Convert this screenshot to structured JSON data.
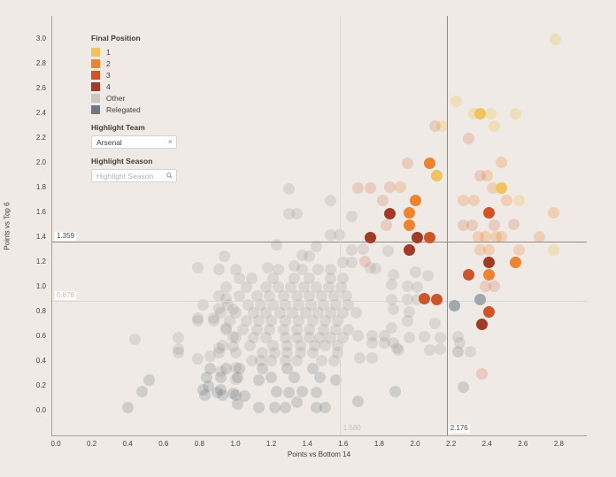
{
  "controls": {
    "highlight_team": {
      "label": "Highlight Team",
      "value": "Arsenal",
      "clear_icon": "×"
    },
    "highlight_season": {
      "label": "Highlight Season",
      "placeholder": "Highlight Season"
    }
  },
  "chart_data": {
    "type": "scatter",
    "title": "",
    "xlabel": "Points vs Bottom 14",
    "ylabel": "Points vs Top 6",
    "xlim": [
      0.0,
      2.8
    ],
    "ylim": [
      0.0,
      3.0
    ],
    "grid": false,
    "x_ticks": [
      "0.0",
      "0.2",
      "0.4",
      "0.6",
      "0.8",
      "1.0",
      "1.2",
      "1.4",
      "1.6",
      "1.8",
      "2.0",
      "2.2",
      "2.4",
      "2.6",
      "2.8"
    ],
    "y_ticks": [
      "0.0",
      "0.2",
      "0.4",
      "0.6",
      "0.8",
      "1.0",
      "1.2",
      "1.4",
      "1.6",
      "1.8",
      "2.0",
      "2.2",
      "2.4",
      "2.6",
      "2.8",
      "3.0"
    ],
    "legend": {
      "title": "Final Position",
      "position": "top-left",
      "entries": [
        {
          "label": "1",
          "color": "#f0c35f"
        },
        {
          "label": "2",
          "color": "#ee8330"
        },
        {
          "label": "3",
          "color": "#cf5429"
        },
        {
          "label": "4",
          "color": "#a03b28"
        },
        {
          "label": "Other",
          "color": "#c9c6c3"
        },
        {
          "label": "Relegated",
          "color": "#6e7883"
        }
      ]
    },
    "ref_lines": {
      "horizontal": [
        {
          "value": 1.359,
          "label": "1.359",
          "strong": true
        },
        {
          "value": 0.878,
          "label": "0.878",
          "strong": false
        }
      ],
      "vertical": [
        {
          "value": 1.58,
          "label": "1.580",
          "strong": false
        },
        {
          "value": 2.176,
          "label": "2.176",
          "strong": true
        }
      ]
    },
    "highlighted_team_points": [
      [
        2.36,
        2.39,
        "1"
      ],
      [
        2.12,
        1.89,
        "1"
      ],
      [
        2.48,
        1.79,
        "1"
      ],
      [
        2.08,
        1.99,
        "2"
      ],
      [
        2.0,
        1.69,
        "2"
      ],
      [
        1.97,
        1.59,
        "2"
      ],
      [
        1.97,
        1.49,
        "2"
      ],
      [
        2.56,
        1.19,
        "2"
      ],
      [
        2.41,
        1.09,
        "2"
      ],
      [
        2.41,
        1.59,
        "3"
      ],
      [
        2.08,
        1.39,
        "3"
      ],
      [
        2.3,
        1.09,
        "3"
      ],
      [
        2.05,
        0.9,
        "3"
      ],
      [
        2.12,
        0.89,
        "3"
      ],
      [
        2.41,
        0.79,
        "3"
      ],
      [
        1.86,
        1.58,
        "4"
      ],
      [
        1.75,
        1.39,
        "4"
      ],
      [
        2.01,
        1.39,
        "4"
      ],
      [
        1.97,
        1.29,
        "4"
      ],
      [
        2.41,
        1.19,
        "4"
      ],
      [
        2.37,
        0.69,
        "4"
      ],
      [
        2.36,
        0.89,
        "G"
      ],
      [
        2.22,
        0.84,
        "G"
      ]
    ],
    "background_points": [
      [
        2.78,
        2.99,
        "1"
      ],
      [
        2.23,
        2.49,
        "1"
      ],
      [
        2.33,
        2.39,
        "1"
      ],
      [
        2.42,
        2.39,
        "1"
      ],
      [
        2.56,
        2.39,
        "1"
      ],
      [
        2.44,
        2.29,
        "1"
      ],
      [
        2.15,
        2.29,
        "1"
      ],
      [
        2.58,
        1.69,
        "1"
      ],
      [
        2.77,
        1.29,
        "1"
      ],
      [
        2.48,
        2.0,
        "2"
      ],
      [
        2.4,
        1.89,
        "2"
      ],
      [
        2.43,
        1.79,
        "2"
      ],
      [
        1.92,
        1.8,
        "2"
      ],
      [
        2.27,
        1.69,
        "2"
      ],
      [
        2.33,
        1.69,
        "2"
      ],
      [
        2.51,
        1.69,
        "2"
      ],
      [
        2.77,
        1.59,
        "2"
      ],
      [
        2.35,
        1.4,
        "2"
      ],
      [
        2.39,
        1.4,
        "2"
      ],
      [
        2.45,
        1.4,
        "2"
      ],
      [
        2.48,
        1.4,
        "2"
      ],
      [
        2.69,
        1.4,
        "2"
      ],
      [
        2.36,
        1.29,
        "2"
      ],
      [
        2.41,
        1.29,
        "2"
      ],
      [
        2.58,
        1.29,
        "2"
      ],
      [
        2.11,
        2.29,
        "3"
      ],
      [
        2.3,
        2.19,
        "3"
      ],
      [
        1.96,
        1.99,
        "3"
      ],
      [
        2.36,
        1.89,
        "3"
      ],
      [
        1.68,
        1.79,
        "3"
      ],
      [
        1.75,
        1.79,
        "3"
      ],
      [
        1.86,
        1.8,
        "3"
      ],
      [
        1.82,
        1.69,
        "3"
      ],
      [
        2.27,
        1.49,
        "3"
      ],
      [
        2.32,
        1.49,
        "3"
      ],
      [
        2.44,
        1.49,
        "3"
      ],
      [
        2.55,
        1.5,
        "3"
      ],
      [
        1.84,
        1.49,
        "3"
      ],
      [
        1.72,
        1.2,
        "3"
      ],
      [
        2.39,
        1.0,
        "3"
      ],
      [
        2.44,
        1.0,
        "3"
      ],
      [
        2.37,
        0.29,
        "3"
      ],
      [
        0.94,
        1.24,
        "O"
      ],
      [
        0.79,
        1.15,
        "O"
      ],
      [
        1.18,
        1.15,
        "O"
      ],
      [
        0.91,
        1.13,
        "O"
      ],
      [
        1.0,
        1.13,
        "O"
      ],
      [
        1.24,
        1.13,
        "O"
      ],
      [
        1.37,
        1.13,
        "O"
      ],
      [
        1.46,
        1.13,
        "O"
      ],
      [
        1.53,
        1.13,
        "O"
      ],
      [
        1.02,
        1.06,
        "O"
      ],
      [
        1.09,
        1.06,
        "O"
      ],
      [
        1.21,
        1.06,
        "O"
      ],
      [
        1.33,
        1.06,
        "O"
      ],
      [
        1.41,
        1.06,
        "O"
      ],
      [
        1.53,
        1.06,
        "O"
      ],
      [
        1.6,
        1.06,
        "O"
      ],
      [
        0.95,
        0.99,
        "O"
      ],
      [
        1.06,
        0.99,
        "O"
      ],
      [
        1.17,
        0.99,
        "O"
      ],
      [
        1.24,
        0.99,
        "O"
      ],
      [
        1.31,
        0.99,
        "O"
      ],
      [
        1.38,
        0.99,
        "O"
      ],
      [
        1.45,
        0.99,
        "O"
      ],
      [
        1.52,
        0.99,
        "O"
      ],
      [
        1.59,
        0.99,
        "O"
      ],
      [
        0.91,
        0.92,
        "O"
      ],
      [
        1.02,
        0.92,
        "O"
      ],
      [
        1.12,
        0.92,
        "O"
      ],
      [
        1.19,
        0.92,
        "O"
      ],
      [
        1.27,
        0.92,
        "O"
      ],
      [
        1.34,
        0.92,
        "O"
      ],
      [
        1.41,
        0.92,
        "O"
      ],
      [
        1.48,
        0.92,
        "O"
      ],
      [
        1.55,
        0.92,
        "O"
      ],
      [
        1.62,
        0.92,
        "O"
      ],
      [
        0.82,
        0.85,
        "O"
      ],
      [
        0.96,
        0.85,
        "O"
      ],
      [
        1.07,
        0.85,
        "O"
      ],
      [
        1.14,
        0.85,
        "O"
      ],
      [
        1.21,
        0.85,
        "O"
      ],
      [
        1.28,
        0.85,
        "O"
      ],
      [
        1.35,
        0.85,
        "O"
      ],
      [
        1.42,
        0.85,
        "O"
      ],
      [
        1.49,
        0.85,
        "O"
      ],
      [
        1.56,
        0.85,
        "O"
      ],
      [
        1.63,
        0.85,
        "O"
      ],
      [
        0.92,
        0.78,
        "O"
      ],
      [
        1.0,
        0.78,
        "O"
      ],
      [
        1.1,
        0.78,
        "O"
      ],
      [
        1.17,
        0.78,
        "O"
      ],
      [
        1.25,
        0.78,
        "O"
      ],
      [
        1.32,
        0.78,
        "O"
      ],
      [
        1.39,
        0.78,
        "O"
      ],
      [
        1.46,
        0.78,
        "O"
      ],
      [
        1.53,
        0.78,
        "O"
      ],
      [
        1.6,
        0.78,
        "O"
      ],
      [
        1.67,
        0.78,
        "O"
      ],
      [
        0.79,
        0.72,
        "O"
      ],
      [
        0.88,
        0.72,
        "O"
      ],
      [
        0.97,
        0.72,
        "O"
      ],
      [
        1.06,
        0.72,
        "O"
      ],
      [
        1.13,
        0.72,
        "O"
      ],
      [
        1.2,
        0.72,
        "O"
      ],
      [
        1.28,
        0.72,
        "O"
      ],
      [
        1.35,
        0.72,
        "O"
      ],
      [
        1.43,
        0.72,
        "O"
      ],
      [
        1.5,
        0.72,
        "O"
      ],
      [
        1.57,
        0.72,
        "O"
      ],
      [
        0.95,
        0.65,
        "O"
      ],
      [
        1.04,
        0.65,
        "O"
      ],
      [
        1.12,
        0.65,
        "O"
      ],
      [
        1.19,
        0.65,
        "O"
      ],
      [
        1.27,
        0.65,
        "O"
      ],
      [
        1.34,
        0.65,
        "O"
      ],
      [
        1.41,
        0.65,
        "O"
      ],
      [
        1.49,
        0.65,
        "O"
      ],
      [
        1.56,
        0.65,
        "O"
      ],
      [
        1.63,
        0.65,
        "O"
      ],
      [
        1.0,
        0.58,
        "O"
      ],
      [
        1.1,
        0.58,
        "O"
      ],
      [
        1.17,
        0.58,
        "O"
      ],
      [
        1.28,
        0.58,
        "O"
      ],
      [
        1.34,
        0.58,
        "O"
      ],
      [
        1.41,
        0.58,
        "O"
      ],
      [
        1.47,
        0.58,
        "O"
      ],
      [
        1.53,
        0.58,
        "O"
      ],
      [
        1.6,
        0.58,
        "O"
      ],
      [
        0.93,
        0.52,
        "O"
      ],
      [
        1.08,
        0.52,
        "O"
      ],
      [
        1.21,
        0.52,
        "O"
      ],
      [
        1.29,
        0.52,
        "O"
      ],
      [
        1.36,
        0.52,
        "O"
      ],
      [
        1.44,
        0.52,
        "O"
      ],
      [
        1.5,
        0.52,
        "O"
      ],
      [
        1.57,
        0.52,
        "O"
      ],
      [
        0.68,
        0.46,
        "O"
      ],
      [
        0.91,
        0.46,
        "O"
      ],
      [
        1.0,
        0.46,
        "O"
      ],
      [
        1.15,
        0.46,
        "O"
      ],
      [
        1.22,
        0.46,
        "O"
      ],
      [
        1.29,
        0.46,
        "O"
      ],
      [
        1.36,
        0.46,
        "O"
      ],
      [
        1.43,
        0.46,
        "O"
      ],
      [
        1.57,
        0.46,
        "O"
      ],
      [
        1.09,
        0.4,
        "O"
      ],
      [
        1.14,
        0.4,
        "O"
      ],
      [
        1.2,
        0.4,
        "O"
      ],
      [
        1.28,
        0.4,
        "O"
      ],
      [
        1.34,
        0.4,
        "O"
      ],
      [
        1.48,
        0.4,
        "O"
      ],
      [
        1.55,
        0.4,
        "O"
      ],
      [
        0.44,
        0.57,
        "O"
      ],
      [
        0.68,
        0.58,
        "O"
      ],
      [
        0.68,
        0.49,
        "O"
      ],
      [
        0.91,
        0.5,
        "O"
      ],
      [
        0.79,
        0.41,
        "O"
      ],
      [
        0.86,
        0.43,
        "O"
      ],
      [
        0.92,
        0.31,
        "O"
      ],
      [
        1.0,
        0.25,
        "O"
      ],
      [
        0.99,
        0.81,
        "O"
      ],
      [
        0.99,
        0.59,
        "O"
      ],
      [
        0.99,
        0.51,
        "O"
      ],
      [
        1.0,
        0.34,
        "O"
      ],
      [
        0.95,
        0.9,
        "O"
      ],
      [
        0.91,
        0.82,
        "O"
      ],
      [
        0.79,
        0.74,
        "O"
      ],
      [
        0.88,
        0.74,
        "O"
      ],
      [
        0.95,
        0.66,
        "O"
      ],
      [
        1.3,
        1.78,
        "O"
      ],
      [
        1.53,
        1.69,
        "O"
      ],
      [
        1.3,
        1.58,
        "O"
      ],
      [
        1.34,
        1.58,
        "O"
      ],
      [
        1.65,
        1.56,
        "O"
      ],
      [
        1.53,
        1.41,
        "O"
      ],
      [
        1.58,
        1.41,
        "O"
      ],
      [
        1.23,
        1.33,
        "O"
      ],
      [
        1.45,
        1.32,
        "O"
      ],
      [
        1.65,
        1.29,
        "O"
      ],
      [
        1.71,
        1.3,
        "O"
      ],
      [
        1.85,
        1.28,
        "O"
      ],
      [
        1.37,
        1.25,
        "O"
      ],
      [
        1.41,
        1.24,
        "O"
      ],
      [
        1.33,
        1.16,
        "O"
      ],
      [
        1.6,
        1.19,
        "O"
      ],
      [
        1.65,
        1.19,
        "O"
      ],
      [
        1.75,
        1.15,
        "O"
      ],
      [
        1.78,
        1.14,
        "O"
      ],
      [
        1.88,
        1.09,
        "O"
      ],
      [
        2.0,
        1.11,
        "O"
      ],
      [
        2.07,
        1.08,
        "O"
      ],
      [
        1.87,
        1.01,
        "O"
      ],
      [
        1.96,
        1.0,
        "O"
      ],
      [
        2.01,
        0.99,
        "O"
      ],
      [
        1.87,
        0.89,
        "O"
      ],
      [
        1.96,
        0.89,
        "O"
      ],
      [
        2.01,
        0.89,
        "O"
      ],
      [
        1.88,
        0.81,
        "O"
      ],
      [
        1.97,
        0.79,
        "O"
      ],
      [
        1.96,
        0.72,
        "O"
      ],
      [
        1.87,
        0.66,
        "O"
      ],
      [
        2.11,
        0.7,
        "O"
      ],
      [
        1.97,
        0.58,
        "O"
      ],
      [
        2.05,
        0.59,
        "O"
      ],
      [
        2.14,
        0.58,
        "O"
      ],
      [
        2.08,
        0.48,
        "O"
      ],
      [
        2.14,
        0.49,
        "O"
      ],
      [
        2.24,
        0.59,
        "O"
      ],
      [
        2.25,
        0.54,
        "O"
      ],
      [
        2.31,
        0.47,
        "O"
      ],
      [
        1.9,
        0.5,
        "O"
      ],
      [
        1.68,
        0.6,
        "O"
      ],
      [
        1.76,
        0.6,
        "O"
      ],
      [
        1.83,
        0.6,
        "O"
      ],
      [
        1.76,
        0.54,
        "O"
      ],
      [
        1.83,
        0.54,
        "O"
      ],
      [
        1.88,
        0.54,
        "O"
      ],
      [
        1.69,
        0.42,
        "O"
      ],
      [
        1.76,
        0.42,
        "O"
      ],
      [
        1.91,
        0.48,
        "O"
      ],
      [
        0.86,
        0.33,
        "R"
      ],
      [
        1.02,
        0.33,
        "R"
      ],
      [
        1.15,
        0.33,
        "R"
      ],
      [
        1.29,
        0.33,
        "R"
      ],
      [
        1.43,
        0.33,
        "R"
      ],
      [
        0.92,
        0.26,
        "R"
      ],
      [
        1.01,
        0.26,
        "R"
      ],
      [
        1.2,
        0.26,
        "R"
      ],
      [
        1.33,
        0.26,
        "R"
      ],
      [
        1.47,
        0.26,
        "R"
      ],
      [
        1.13,
        0.24,
        "R"
      ],
      [
        1.56,
        0.24,
        "R"
      ],
      [
        0.85,
        0.19,
        "R"
      ],
      [
        1.23,
        0.15,
        "R"
      ],
      [
        1.3,
        0.14,
        "R"
      ],
      [
        1.37,
        0.15,
        "R"
      ],
      [
        1.45,
        0.14,
        "R"
      ],
      [
        0.83,
        0.12,
        "R"
      ],
      [
        0.93,
        0.12,
        "R"
      ],
      [
        1.0,
        0.12,
        "R"
      ],
      [
        1.34,
        0.06,
        "R"
      ],
      [
        0.4,
        0.02,
        "R"
      ],
      [
        1.13,
        0.02,
        "R"
      ],
      [
        1.22,
        0.02,
        "R"
      ],
      [
        1.28,
        0.02,
        "R"
      ],
      [
        1.45,
        0.02,
        "R"
      ],
      [
        1.5,
        0.02,
        "R"
      ],
      [
        1.68,
        0.07,
        "R"
      ],
      [
        0.95,
        0.33,
        "R"
      ],
      [
        0.84,
        0.26,
        "R"
      ],
      [
        0.52,
        0.24,
        "R"
      ],
      [
        0.48,
        0.15,
        "R"
      ],
      [
        0.9,
        0.14,
        "R"
      ],
      [
        1.05,
        0.11,
        "R"
      ],
      [
        1.01,
        0.05,
        "R"
      ],
      [
        0.99,
        0.13,
        "R"
      ],
      [
        0.82,
        0.16,
        "R"
      ],
      [
        0.92,
        0.16,
        "R"
      ],
      [
        2.24,
        0.47,
        "R"
      ],
      [
        1.89,
        0.15,
        "R"
      ],
      [
        2.27,
        0.18,
        "R"
      ]
    ]
  }
}
